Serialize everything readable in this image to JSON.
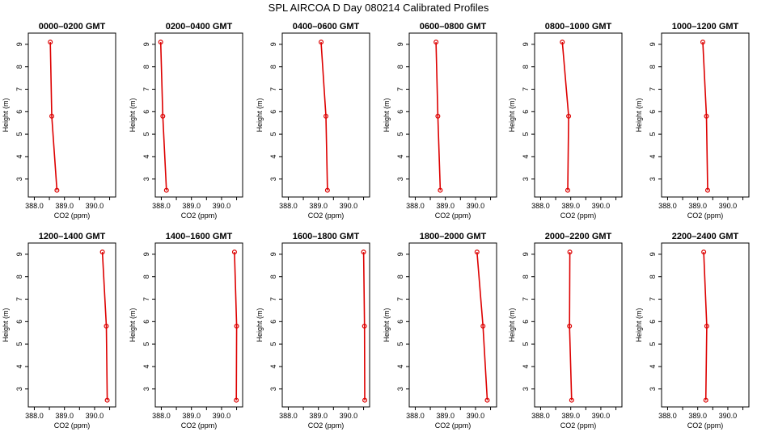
{
  "title": "SPL AIRCOA D  Day 080214  Calibrated Profiles",
  "colors": {
    "series": "#dd0000",
    "axis": "#000000",
    "background": "#ffffff"
  },
  "chart_data": [
    {
      "type": "line",
      "title": "0000–0200 GMT",
      "xlabel": "CO2 (ppm)",
      "ylabel": "Height (m)",
      "xlim": [
        387.8,
        390.7
      ],
      "ylim": [
        2.2,
        9.5
      ],
      "xticks": [
        "388.0",
        "389.0",
        "390.0"
      ],
      "yticks": [
        "3",
        "4",
        "5",
        "6",
        "7",
        "8",
        "9"
      ],
      "x": [
        388.53,
        388.58,
        388.75
      ],
      "y": [
        9.1,
        5.8,
        2.5
      ]
    },
    {
      "type": "line",
      "title": "0200–0400 GMT",
      "xlabel": "CO2 (ppm)",
      "ylabel": "Height (m)",
      "xlim": [
        387.8,
        390.7
      ],
      "ylim": [
        2.2,
        9.5
      ],
      "xticks": [
        "388.0",
        "389.0",
        "390.0"
      ],
      "yticks": [
        "3",
        "4",
        "5",
        "6",
        "7",
        "8",
        "9"
      ],
      "x": [
        387.98,
        388.05,
        388.17
      ],
      "y": [
        9.1,
        5.8,
        2.5
      ]
    },
    {
      "type": "line",
      "title": "0400–0600 GMT",
      "xlabel": "CO2 (ppm)",
      "ylabel": "Height (m)",
      "xlim": [
        387.8,
        390.7
      ],
      "ylim": [
        2.2,
        9.5
      ],
      "xticks": [
        "388.0",
        "389.0",
        "390.0"
      ],
      "yticks": [
        "3",
        "4",
        "5",
        "6",
        "7",
        "8",
        "9"
      ],
      "x": [
        389.09,
        389.25,
        389.3
      ],
      "y": [
        9.1,
        5.8,
        2.5
      ]
    },
    {
      "type": "line",
      "title": "0600–0800 GMT",
      "xlabel": "CO2 (ppm)",
      "ylabel": "Height (m)",
      "xlim": [
        387.8,
        390.7
      ],
      "ylim": [
        2.2,
        9.5
      ],
      "xticks": [
        "388.0",
        "389.0",
        "390.0"
      ],
      "yticks": [
        "3",
        "4",
        "5",
        "6",
        "7",
        "8",
        "9"
      ],
      "x": [
        388.69,
        388.75,
        388.83
      ],
      "y": [
        9.1,
        5.8,
        2.5
      ]
    },
    {
      "type": "line",
      "title": "0800–1000 GMT",
      "xlabel": "CO2 (ppm)",
      "ylabel": "Height (m)",
      "xlim": [
        387.8,
        390.7
      ],
      "ylim": [
        2.2,
        9.5
      ],
      "xticks": [
        "388.0",
        "389.0",
        "390.0"
      ],
      "yticks": [
        "3",
        "4",
        "5",
        "6",
        "7",
        "8",
        "9"
      ],
      "x": [
        388.72,
        388.93,
        388.9
      ],
      "y": [
        9.1,
        5.8,
        2.5
      ]
    },
    {
      "type": "line",
      "title": "1000–1200 GMT",
      "xlabel": "CO2 (ppm)",
      "ylabel": "Height (m)",
      "xlim": [
        387.8,
        390.7
      ],
      "ylim": [
        2.2,
        9.5
      ],
      "xticks": [
        "388.0",
        "389.0",
        "390.0"
      ],
      "yticks": [
        "3",
        "4",
        "5",
        "6",
        "7",
        "8",
        "9"
      ],
      "x": [
        389.17,
        389.29,
        389.33
      ],
      "y": [
        9.1,
        5.8,
        2.5
      ]
    },
    {
      "type": "line",
      "title": "1200–1400 GMT",
      "xlabel": "CO2 (ppm)",
      "ylabel": "Height (m)",
      "xlim": [
        387.8,
        390.7
      ],
      "ylim": [
        2.2,
        9.5
      ],
      "xticks": [
        "388.0",
        "389.0",
        "390.0"
      ],
      "yticks": [
        "3",
        "4",
        "5",
        "6",
        "7",
        "8",
        "9"
      ],
      "x": [
        390.26,
        390.39,
        390.42
      ],
      "y": [
        9.1,
        5.8,
        2.5
      ]
    },
    {
      "type": "line",
      "title": "1400–1600 GMT",
      "xlabel": "CO2 (ppm)",
      "ylabel": "Height (m)",
      "xlim": [
        387.8,
        390.7
      ],
      "ylim": [
        2.2,
        9.5
      ],
      "xticks": [
        "388.0",
        "389.0",
        "390.0"
      ],
      "yticks": [
        "3",
        "4",
        "5",
        "6",
        "7",
        "8",
        "9"
      ],
      "x": [
        390.43,
        390.5,
        390.49
      ],
      "y": [
        9.1,
        5.8,
        2.5
      ]
    },
    {
      "type": "line",
      "title": "1600–1800 GMT",
      "xlabel": "CO2 (ppm)",
      "ylabel": "Height (m)",
      "xlim": [
        387.8,
        390.7
      ],
      "ylim": [
        2.2,
        9.5
      ],
      "xticks": [
        "388.0",
        "389.0",
        "390.0"
      ],
      "yticks": [
        "3",
        "4",
        "5",
        "6",
        "7",
        "8",
        "9"
      ],
      "x": [
        390.5,
        390.53,
        390.54
      ],
      "y": [
        9.1,
        5.8,
        2.5
      ]
    },
    {
      "type": "line",
      "title": "1800–2000 GMT",
      "xlabel": "CO2 (ppm)",
      "ylabel": "Height (m)",
      "xlim": [
        387.8,
        390.7
      ],
      "ylim": [
        2.2,
        9.5
      ],
      "xticks": [
        "388.0",
        "389.0",
        "390.0"
      ],
      "yticks": [
        "3",
        "4",
        "5",
        "6",
        "7",
        "8",
        "9"
      ],
      "x": [
        390.05,
        390.25,
        390.39
      ],
      "y": [
        9.1,
        5.8,
        2.5
      ]
    },
    {
      "type": "line",
      "title": "2000–2200 GMT",
      "xlabel": "CO2 (ppm)",
      "ylabel": "Height (m)",
      "xlim": [
        387.8,
        390.7
      ],
      "ylim": [
        2.2,
        9.5
      ],
      "xticks": [
        "388.0",
        "389.0",
        "390.0"
      ],
      "yticks": [
        "3",
        "4",
        "5",
        "6",
        "7",
        "8",
        "9"
      ],
      "x": [
        388.97,
        388.96,
        389.03
      ],
      "y": [
        9.1,
        5.8,
        2.5
      ]
    },
    {
      "type": "line",
      "title": "2200–2400 GMT",
      "xlabel": "CO2 (ppm)",
      "ylabel": "Height (m)",
      "xlim": [
        387.8,
        390.7
      ],
      "ylim": [
        2.2,
        9.5
      ],
      "xticks": [
        "388.0",
        "389.0",
        "390.0"
      ],
      "yticks": [
        "3",
        "4",
        "5",
        "6",
        "7",
        "8",
        "9"
      ],
      "x": [
        389.2,
        389.3,
        389.27
      ],
      "y": [
        9.1,
        5.8,
        2.5
      ]
    }
  ]
}
